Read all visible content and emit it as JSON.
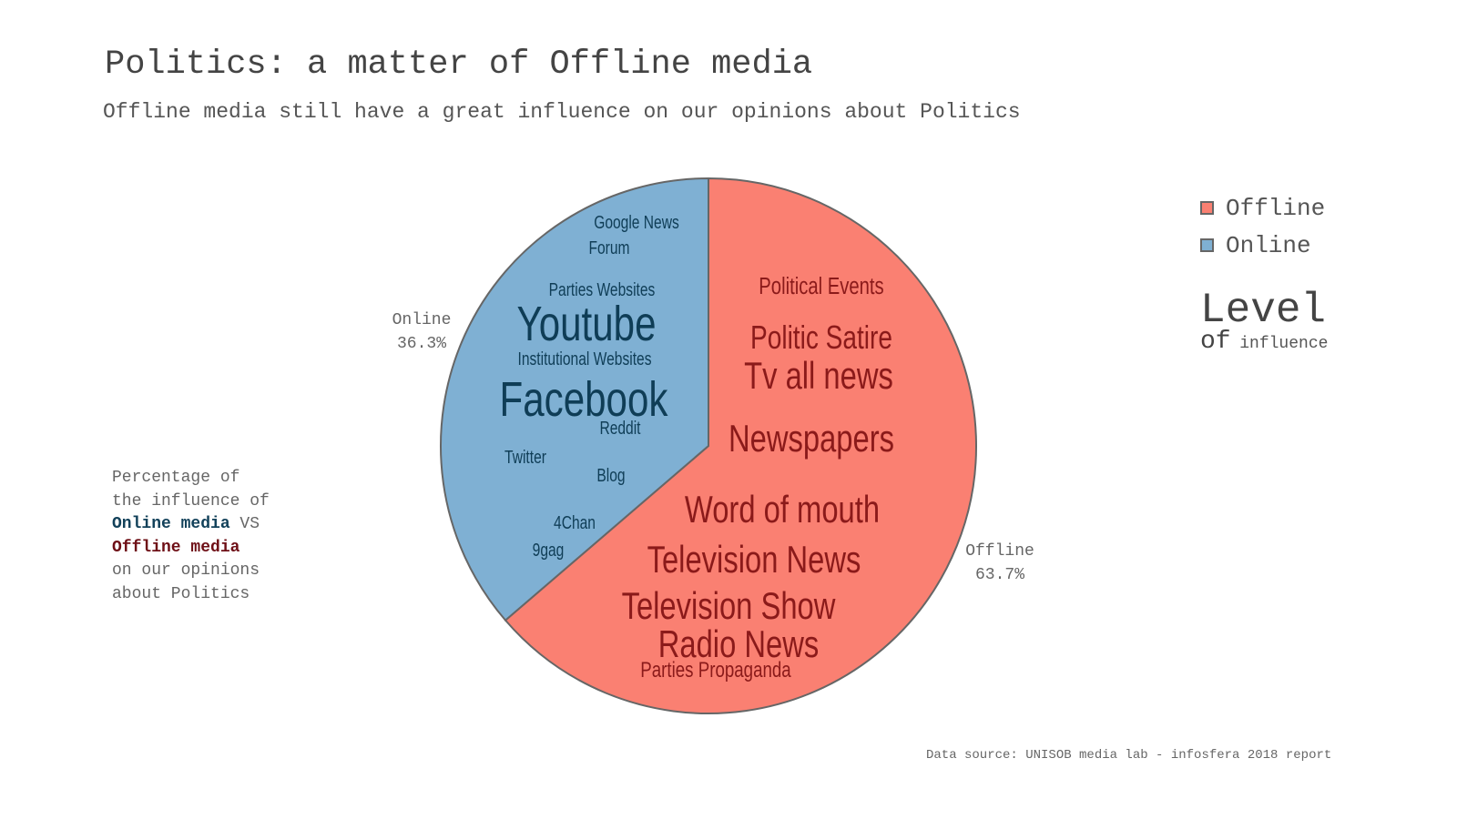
{
  "chart_data": {
    "type": "pie",
    "title": "Politics: a matter of Offline media",
    "subtitle": "Offline media still have a great influence on our opinions about Politics",
    "slices": [
      {
        "name": "Offline",
        "value": 63.7,
        "label_name": "Offline",
        "label_value": "63.7%",
        "color": "#fa8072"
      },
      {
        "name": "Online",
        "value": 36.3,
        "label_name": "Online",
        "label_value": "36.3%",
        "color": "#7fb0d3"
      }
    ],
    "legend": {
      "placement": "top-right",
      "entries": [
        {
          "name": "Offline",
          "color": "#fa8072"
        },
        {
          "name": "Online",
          "color": "#7fb0d3"
        }
      ]
    },
    "word_clouds": {
      "online": {
        "color": "#0f3d56",
        "words": [
          "Google News",
          "Forum",
          "Parties Websites",
          "Youtube",
          "Institutional Websites",
          "Facebook",
          "Reddit",
          "Twitter",
          "Blog",
          "4Chan",
          "9gag"
        ]
      },
      "offline": {
        "color": "#8b1a1a",
        "words": [
          "Political Events",
          "Politic Satire",
          "Tv all news",
          "Newspapers",
          "Word of mouth",
          "Television News",
          "Television Show",
          "Radio News",
          "Parties Propaganda"
        ]
      }
    },
    "level_key": {
      "big": "Level",
      "of": "of",
      "small": "influence"
    }
  },
  "description": {
    "line1": "Percentage of",
    "line2": "the influence of",
    "online": "Online media",
    "vs": " VS",
    "offline": "Offline media",
    "line5": "on our opinions",
    "line6": "about Politics"
  },
  "source": "Data source: UNISOB media lab - infosfera 2018 report"
}
